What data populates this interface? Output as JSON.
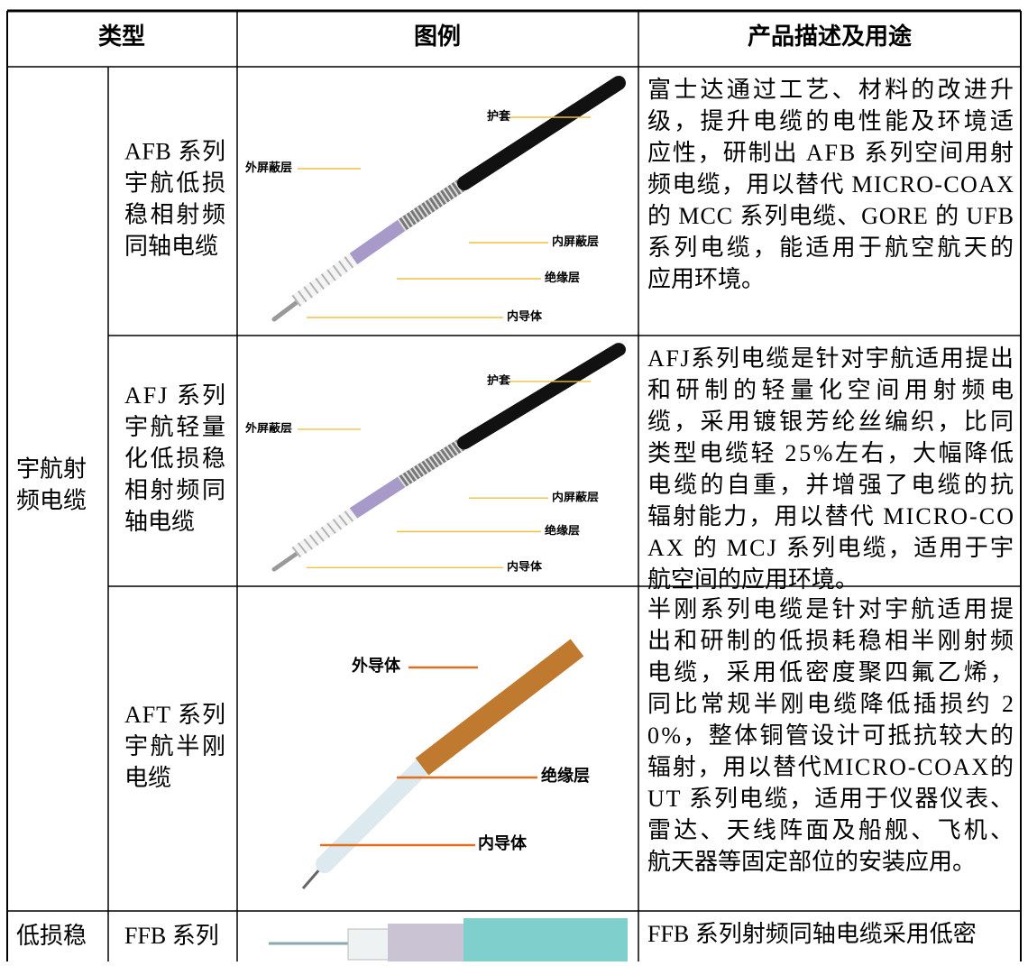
{
  "header": [
    "类型",
    "图例",
    "产品描述及用途"
  ],
  "groups": [
    {
      "category": [
        "宇航射",
        "频电缆"
      ],
      "items": [
        {
          "name": [
            "AFB 系列",
            "宇航低损",
            "稳相射频",
            "同轴电缆"
          ],
          "figure_labels": [
            "护套",
            "外屏蔽层",
            "内屏蔽层",
            "绝缘层",
            "内导体"
          ],
          "description": [
            "富士达通过工艺、材料的改进升",
            "级，提升电缆的电性能及环境适",
            "应性，研制出 AFB 系列空间用射",
            "频电缆，用以替代 MICRO-COAX",
            "的 MCC 系列电缆、GORE 的 UFB",
            "系列电缆，能适用于航空航天的",
            "应用环境。"
          ]
        },
        {
          "name": [
            "AFJ 系列",
            "宇航轻量",
            "化低损稳",
            "相射频同",
            "轴电缆"
          ],
          "figure_labels": [
            "护套",
            "外屏蔽层",
            "内屏蔽层",
            "绝缘层",
            "内导体"
          ],
          "description": [
            "AFJ系列电缆是针对宇航适用提出",
            "和研制的轻量化空间用射频电",
            "缆，采用镀银芳纶丝编织，比同",
            "类型电缆轻 25%左右，大幅降低",
            "电缆的自重，并增强了电缆的抗",
            "辐射能力，用以替代 MICRO-CO",
            "AX 的 MCJ 系列电缆，适用于宇",
            "航空间的应用环境。"
          ]
        },
        {
          "name": [
            "AFT 系列",
            "宇航半刚",
            "电缆"
          ],
          "figure_labels": [
            "外导体",
            "绝缘层",
            "内导体"
          ],
          "description": [
            "半刚系列电缆是针对宇航适用提",
            "出和研制的低损耗稳相半刚射频",
            "电缆，采用低密度聚四氟乙烯，",
            "同比常规半刚电缆降低插损约 2",
            "0%，整体铜管设计可抵抗较大的",
            "辐射，用以替代MICRO-COAX的",
            "UT 系列电缆，适用于仪器仪表、",
            "雷达、天线阵面及船舰、飞机、",
            "航天器等固定部位的安装应用。"
          ]
        }
      ]
    },
    {
      "category": [
        "低损稳"
      ],
      "items": [
        {
          "name": [
            "FFB 系列"
          ],
          "description": [
            "FFB 系列射频同轴电缆采用低密"
          ]
        }
      ]
    }
  ]
}
